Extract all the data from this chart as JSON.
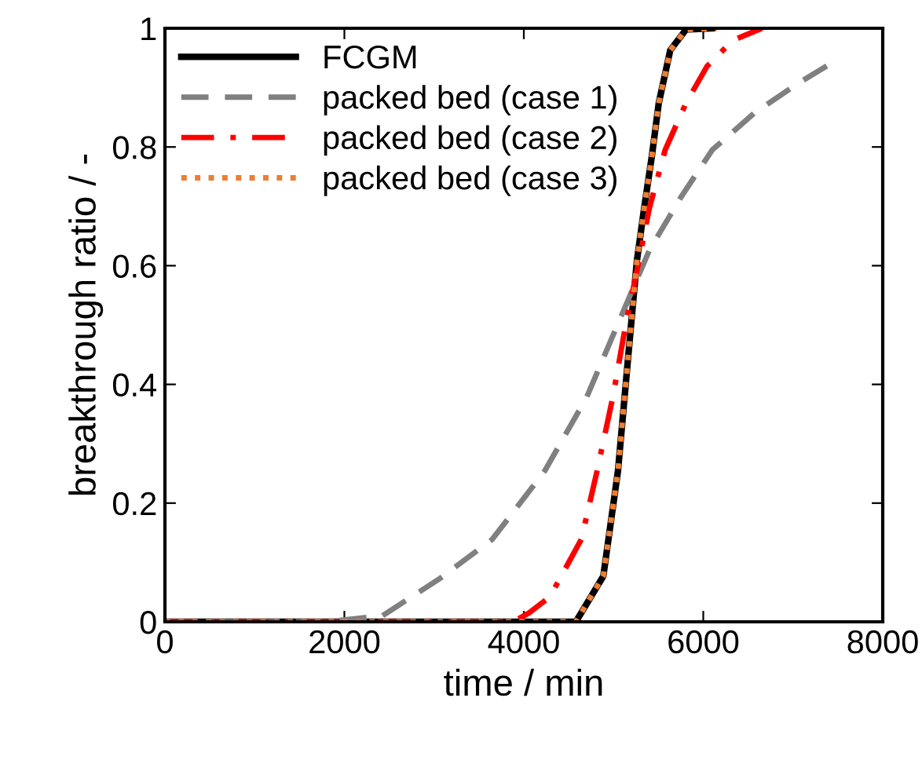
{
  "chart_data": {
    "type": "line",
    "xlabel": "time / min",
    "ylabel": "breakthrough ratio / -",
    "xlim": [
      0,
      8000
    ],
    "xticks": [
      0,
      2000,
      4000,
      6000,
      8000
    ],
    "ylim": [
      0,
      1
    ],
    "yticks": [
      0,
      0.2,
      0.4,
      0.6,
      0.8,
      1
    ],
    "grid": false,
    "legend": "top left",
    "series": [
      {
        "name": "FCGM",
        "color": "#000000",
        "line_style": "solid",
        "x": [
          0,
          4000,
          4580,
          4886,
          5049,
          5154,
          5207,
          5260,
          5341,
          5428,
          5504,
          5632,
          5808,
          6100
        ],
        "values": [
          0,
          0,
          0,
          0.077,
          0.254,
          0.431,
          0.52,
          0.608,
          0.697,
          0.786,
          0.874,
          0.963,
          0.998,
          1
        ]
      },
      {
        "name": "packed bed (case 1)",
        "color": "#808080",
        "line_style": "dashed",
        "x": [
          0,
          1800,
          2422,
          3064,
          3648,
          4232,
          4699,
          5049,
          5399,
          5749,
          6100,
          6567,
          7034,
          7413
        ],
        "values": [
          0,
          0,
          0.01,
          0.073,
          0.139,
          0.254,
          0.378,
          0.502,
          0.626,
          0.715,
          0.795,
          0.857,
          0.905,
          0.94
        ]
      },
      {
        "name": "packed bed (case 2)",
        "color": "#ff0000",
        "line_style": "dashdot",
        "x": [
          0,
          3882,
          4057,
          4290,
          4641,
          4816,
          4991,
          5137,
          5283,
          5399,
          5575,
          5808,
          6042,
          6333,
          6654
        ],
        "values": [
          0,
          0,
          0.015,
          0.042,
          0.139,
          0.254,
          0.378,
          0.502,
          0.608,
          0.697,
          0.795,
          0.874,
          0.936,
          0.98,
          1
        ]
      },
      {
        "name": "packed bed (case 3)",
        "color": "#ed7d31",
        "line_style": "dotted",
        "x": [
          0,
          4000,
          4580,
          4886,
          5049,
          5154,
          5207,
          5260,
          5341,
          5428,
          5504,
          5632,
          5808,
          6150
        ],
        "values": [
          0,
          0,
          0,
          0.077,
          0.254,
          0.431,
          0.52,
          0.608,
          0.697,
          0.786,
          0.874,
          0.963,
          0.998,
          1
        ]
      }
    ]
  }
}
